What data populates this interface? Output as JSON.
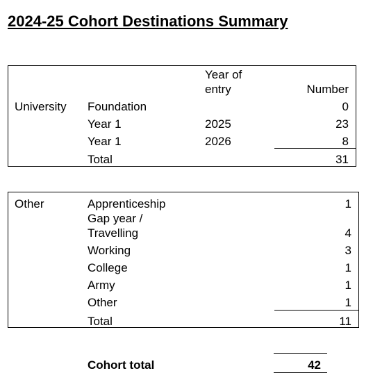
{
  "title": "2024-25 Cohort Destinations Summary",
  "university": {
    "section_label": "University",
    "headers": {
      "year_of_entry_line1": "Year of",
      "year_of_entry_line2": "entry",
      "number": "Number"
    },
    "rows": [
      {
        "type": "Foundation",
        "year": "",
        "number": "0"
      },
      {
        "type": "Year 1",
        "year": "2025",
        "number": "23"
      },
      {
        "type": "Year 1",
        "year": "2026",
        "number": "8"
      }
    ],
    "total_label": "Total",
    "total_value": "31"
  },
  "other": {
    "section_label": "Other",
    "rows": [
      {
        "type": "Apprenticeship",
        "number": "1"
      },
      {
        "type_line1": "Gap year /",
        "type_line2": "Travelling",
        "number": "4"
      },
      {
        "type": "Working",
        "number": "3"
      },
      {
        "type": "College",
        "number": "1"
      },
      {
        "type": "Army",
        "number": "1"
      },
      {
        "type": "Other",
        "number": "1"
      }
    ],
    "total_label": "Total",
    "total_value": "11"
  },
  "cohort": {
    "label": "Cohort total",
    "value": "42"
  }
}
